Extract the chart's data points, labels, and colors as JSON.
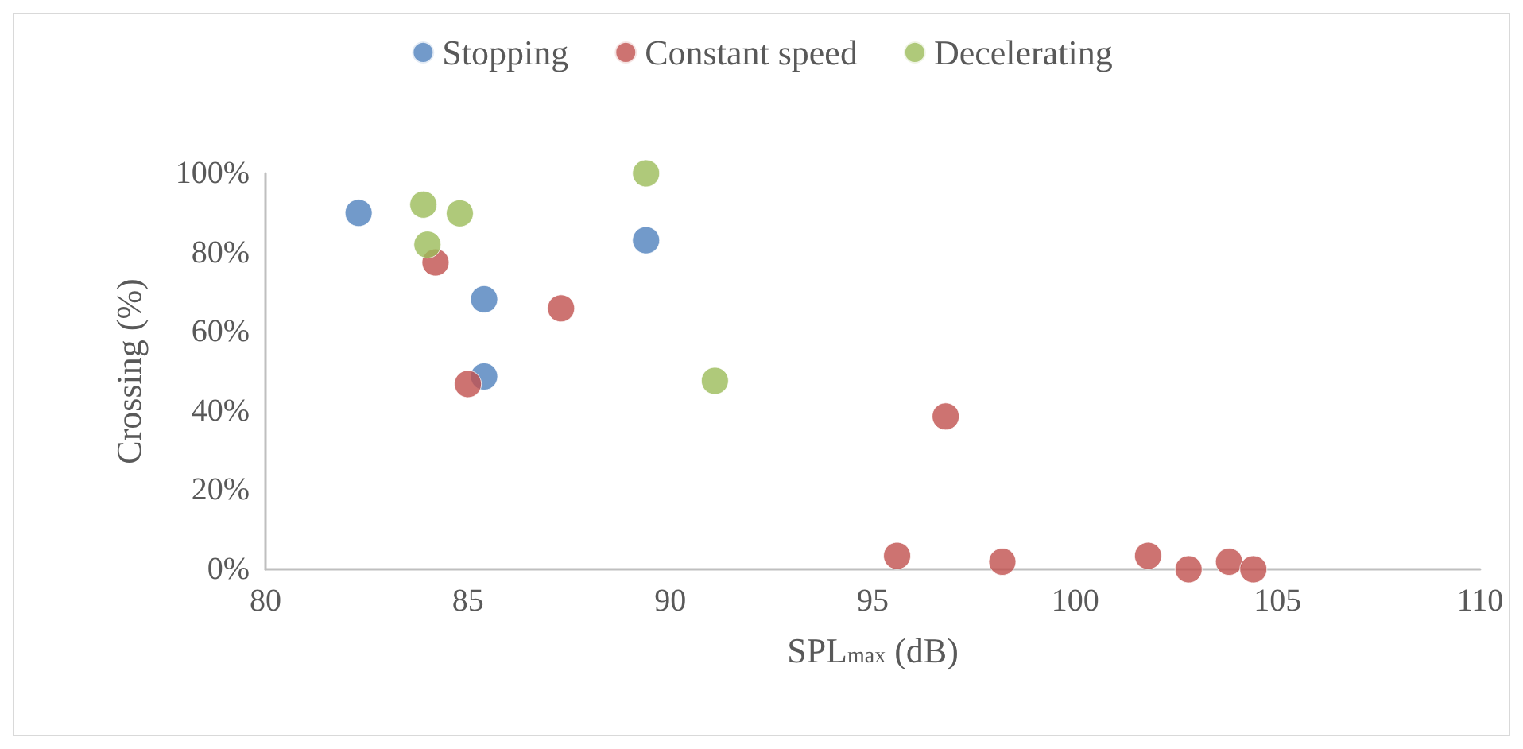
{
  "chart_data": {
    "type": "scatter",
    "xlabel": "SPL$_{max}$ (dB)",
    "ylabel": "Crossing (%)",
    "legend": "top",
    "grid": false,
    "marker": "circle",
    "xlim": [
      80,
      110
    ],
    "xticks": [
      80,
      85,
      90,
      95,
      100,
      105,
      110
    ],
    "ylim": [
      0,
      100
    ],
    "yticks": [
      {
        "value": 0,
        "label": "0%"
      },
      {
        "value": 20,
        "label": "20%"
      },
      {
        "value": 40,
        "label": "40%"
      },
      {
        "value": 60,
        "label": "60%"
      },
      {
        "value": 80,
        "label": "80%"
      },
      {
        "value": 100,
        "label": "100%"
      }
    ],
    "series": [
      {
        "name": "Stopping",
        "color": "#4f81bd",
        "x": [
          82.3,
          85.4,
          85.4,
          89.4
        ],
        "values": [
          90,
          48.7,
          68.2,
          83.1
        ]
      },
      {
        "name": "Constant speed",
        "color": "#c0504d",
        "x": [
          84.2,
          85.0,
          87.3,
          96.8,
          95.6,
          98.2,
          101.8,
          102.8,
          103.8,
          104.4
        ],
        "values": [
          77.5,
          46.8,
          65.9,
          38.6,
          3.4,
          1.9,
          3.4,
          0,
          1.9,
          0
        ]
      },
      {
        "name": "Decelerating",
        "color": "#9bbb59",
        "x": [
          83.9,
          84.8,
          84.0,
          89.4,
          91.1
        ],
        "values": [
          92.1,
          89.9,
          82.0,
          100,
          47.6
        ]
      }
    ]
  }
}
